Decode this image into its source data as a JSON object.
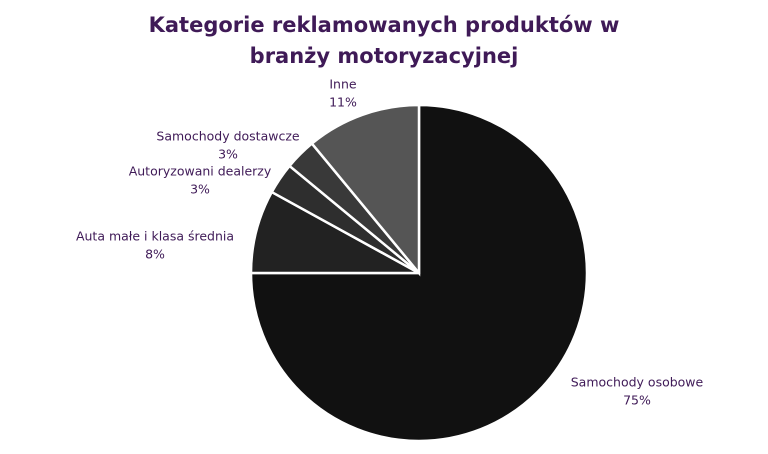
{
  "chart_data": {
    "type": "pie",
    "title": "Kategorie reklamowanych produktów w branży motoryzacyjnej",
    "categories": [
      "Samochody osobowe",
      "Auta małe i klasa średnia",
      "Autoryzowani dealerzy",
      "Samochody dostawcze",
      "Inne"
    ],
    "values": [
      75,
      8,
      3,
      3,
      11
    ],
    "value_labels": [
      "75%",
      "8%",
      "3%",
      "3%",
      "11%"
    ],
    "colors": [
      "#111111",
      "#222222",
      "#2e2e2e",
      "#393939",
      "#555555"
    ]
  }
}
